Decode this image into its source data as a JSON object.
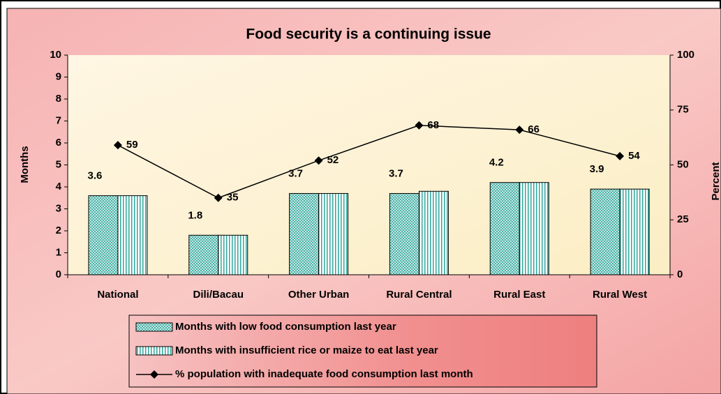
{
  "chart_data": {
    "type": "bar",
    "title": "Food security is a continuing issue",
    "ylabel": "Months",
    "y2label": "Percent",
    "categories": [
      "National",
      "Dili/Bacau",
      "Other Urban",
      "Rural Central",
      "Rural East",
      "Rural West"
    ],
    "series": [
      {
        "name": "Months with low food consumption last year",
        "type": "bar",
        "pattern": "crosshatch",
        "color": "#2fa79b",
        "values": [
          3.6,
          1.8,
          3.7,
          3.7,
          4.2,
          3.9
        ],
        "show_labels": true
      },
      {
        "name": "Months with insufficient rice or maize to eat last year",
        "type": "bar",
        "pattern": "vertical",
        "color": "#2fa79b",
        "values": [
          3.6,
          1.8,
          3.7,
          3.8,
          4.2,
          3.9
        ]
      },
      {
        "name": "% population with inadequate food consumption last month",
        "type": "line",
        "axis": "y2",
        "color": "#000000",
        "values": [
          59,
          35,
          52,
          68,
          66,
          54
        ],
        "show_labels": true
      }
    ],
    "ylim": [
      0,
      10
    ],
    "yticks": [
      0,
      1,
      2,
      3,
      4,
      5,
      6,
      7,
      8,
      9,
      10
    ],
    "y2lim": [
      0,
      100
    ],
    "y2ticks": [
      0,
      25,
      50,
      75,
      100
    ],
    "legend": "bottom"
  }
}
